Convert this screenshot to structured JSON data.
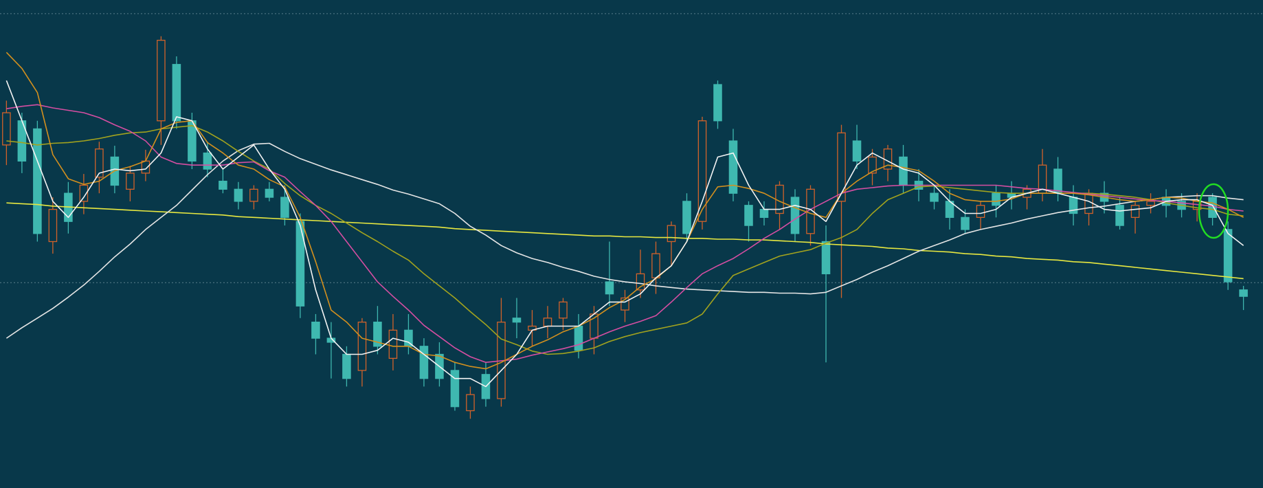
{
  "chart_data": {
    "type": "candlestick",
    "ylim": [
      0,
      606
    ],
    "grid_lines": [
      589,
      255
    ],
    "up_color": "#d2622a",
    "down_color": "#3fb8b0",
    "ohlc": [
      [
        426,
        481,
        401,
        466
      ],
      [
        456,
        466,
        391,
        406
      ],
      [
        446,
        456,
        306,
        316
      ],
      [
        306,
        361,
        291,
        346
      ],
      [
        366,
        380,
        316,
        331
      ],
      [
        356,
        390,
        340,
        376
      ],
      [
        386,
        430,
        366,
        421
      ],
      [
        411,
        425,
        366,
        376
      ],
      [
        371,
        400,
        356,
        391
      ],
      [
        391,
        420,
        381,
        406
      ],
      [
        456,
        561,
        426,
        556
      ],
      [
        526,
        536,
        446,
        456
      ],
      [
        456,
        466,
        396,
        406
      ],
      [
        416,
        430,
        386,
        396
      ],
      [
        381,
        396,
        366,
        371
      ],
      [
        371,
        380,
        346,
        356
      ],
      [
        356,
        376,
        346,
        371
      ],
      [
        371,
        380,
        356,
        361
      ],
      [
        361,
        376,
        326,
        336
      ],
      [
        331,
        341,
        211,
        226
      ],
      [
        206,
        216,
        166,
        186
      ],
      [
        186,
        206,
        136,
        181
      ],
      [
        166,
        176,
        126,
        136
      ],
      [
        146,
        211,
        126,
        206
      ],
      [
        206,
        226,
        166,
        176
      ],
      [
        161,
        216,
        146,
        196
      ],
      [
        196,
        216,
        166,
        176
      ],
      [
        176,
        186,
        126,
        136
      ],
      [
        166,
        181,
        126,
        136
      ],
      [
        146,
        156,
        96,
        101
      ],
      [
        96,
        126,
        86,
        116
      ],
      [
        141,
        156,
        101,
        111
      ],
      [
        111,
        236,
        101,
        206
      ],
      [
        211,
        236,
        186,
        206
      ],
      [
        196,
        221,
        176,
        201
      ],
      [
        201,
        226,
        186,
        211
      ],
      [
        211,
        236,
        196,
        231
      ],
      [
        201,
        216,
        161,
        171
      ],
      [
        186,
        226,
        166,
        216
      ],
      [
        256,
        306,
        226,
        241
      ],
      [
        221,
        246,
        206,
        236
      ],
      [
        246,
        296,
        236,
        266
      ],
      [
        261,
        306,
        241,
        291
      ],
      [
        306,
        331,
        276,
        326
      ],
      [
        356,
        366,
        306,
        316
      ],
      [
        331,
        461,
        321,
        456
      ],
      [
        501,
        506,
        446,
        456
      ],
      [
        431,
        446,
        356,
        366
      ],
      [
        351,
        356,
        306,
        326
      ],
      [
        346,
        356,
        326,
        336
      ],
      [
        341,
        381,
        321,
        376
      ],
      [
        361,
        371,
        306,
        316
      ],
      [
        316,
        376,
        301,
        371
      ],
      [
        306,
        326,
        156,
        266
      ],
      [
        356,
        451,
        236,
        441
      ],
      [
        431,
        451,
        396,
        406
      ],
      [
        391,
        421,
        376,
        411
      ],
      [
        396,
        426,
        381,
        421
      ],
      [
        411,
        426,
        366,
        376
      ],
      [
        381,
        396,
        356,
        371
      ],
      [
        366,
        376,
        346,
        356
      ],
      [
        356,
        371,
        321,
        336
      ],
      [
        336,
        346,
        316,
        321
      ],
      [
        336,
        356,
        321,
        351
      ],
      [
        366,
        376,
        336,
        351
      ],
      [
        366,
        381,
        346,
        361
      ],
      [
        361,
        376,
        346,
        371
      ],
      [
        366,
        421,
        356,
        401
      ],
      [
        396,
        411,
        356,
        366
      ],
      [
        361,
        376,
        326,
        341
      ],
      [
        341,
        371,
        326,
        366
      ],
      [
        366,
        381,
        341,
        356
      ],
      [
        351,
        361,
        321,
        326
      ],
      [
        336,
        356,
        316,
        351
      ],
      [
        351,
        366,
        341,
        356
      ],
      [
        361,
        371,
        336,
        351
      ],
      [
        356,
        366,
        336,
        346
      ],
      [
        346,
        366,
        331,
        356
      ],
      [
        361,
        366,
        326,
        336
      ],
      [
        321,
        331,
        246,
        256
      ],
      [
        246,
        251,
        221,
        238
      ]
    ],
    "moving_averages": [
      {
        "color": "#e8e840",
        "values": [
          354,
          353,
          352,
          350,
          349,
          348,
          347,
          346,
          345,
          344,
          343,
          342,
          341,
          340,
          339,
          337,
          336,
          335,
          334,
          333,
          332,
          331,
          330,
          329,
          328,
          327,
          326,
          325,
          324,
          322,
          321,
          320,
          319,
          318,
          317,
          316,
          315,
          314,
          313,
          313,
          312,
          312,
          311,
          311,
          310,
          310,
          309,
          309,
          308,
          308,
          307,
          306,
          305,
          303,
          302,
          301,
          300,
          298,
          297,
          295,
          294,
          293,
          291,
          290,
          288,
          287,
          285,
          284,
          283,
          281,
          280,
          278,
          276,
          274,
          272,
          270,
          268,
          266,
          264,
          262,
          260
        ]
      },
      {
        "color": "#e6e6e6",
        "values": [
          186,
          199,
          211,
          223,
          237,
          252,
          269,
          287,
          303,
          321,
          336,
          351,
          370,
          389,
          406,
          419,
          427,
          428,
          418,
          409,
          402,
          395,
          389,
          383,
          377,
          370,
          365,
          359,
          353,
          341,
          325,
          314,
          301,
          292,
          285,
          280,
          274,
          269,
          263,
          259,
          256,
          254,
          251,
          249,
          247,
          246,
          245,
          244,
          243,
          243,
          242,
          242,
          241,
          243,
          251,
          259,
          268,
          276,
          285,
          294,
          301,
          308,
          316,
          321,
          325,
          329,
          334,
          338,
          342,
          345,
          348,
          350,
          353,
          356,
          358,
          361,
          362,
          363,
          363,
          360,
          358
        ]
      },
      {
        "color": "#a3a31e",
        "values": [
          431,
          429,
          426,
          428,
          429,
          431,
          434,
          438,
          441,
          442,
          446,
          448,
          450,
          442,
          431,
          418,
          406,
          396,
          378,
          363,
          351,
          341,
          329,
          317,
          306,
          294,
          283,
          266,
          251,
          236,
          219,
          203,
          185,
          178,
          170,
          166,
          167,
          170,
          174,
          182,
          188,
          193,
          197,
          201,
          205,
          216,
          241,
          264,
          272,
          280,
          288,
          292,
          296,
          304,
          311,
          321,
          341,
          358,
          366,
          374,
          375,
          373,
          371,
          369,
          367,
          366,
          366,
          366,
          366,
          366,
          366,
          365,
          363,
          361,
          358,
          354,
          351,
          348,
          346,
          340,
          338
        ]
      },
      {
        "color": "#d64ea2",
        "values": [
          471,
          474,
          476,
          472,
          469,
          466,
          460,
          451,
          443,
          431,
          411,
          403,
          401,
          401,
          401,
          404,
          405,
          394,
          386,
          368,
          351,
          331,
          306,
          281,
          256,
          238,
          221,
          202,
          188,
          174,
          163,
          156,
          158,
          160,
          165,
          169,
          173,
          178,
          186,
          194,
          201,
          207,
          214,
          231,
          249,
          266,
          276,
          285,
          297,
          310,
          321,
          334,
          346,
          356,
          366,
          371,
          373,
          375,
          376,
          376,
          376,
          376,
          376,
          376,
          376,
          374,
          372,
          371,
          369,
          367,
          365,
          363,
          361,
          359,
          357,
          356,
          354,
          352,
          350,
          346,
          344
        ]
      },
      {
        "color": "#d4901e",
        "values": [
          541,
          521,
          491,
          414,
          384,
          377,
          381,
          394,
          399,
          406,
          446,
          454,
          456,
          429,
          416,
          401,
          396,
          383,
          374,
          336,
          281,
          221,
          206,
          186,
          181,
          176,
          176,
          166,
          164,
          156,
          151,
          148,
          156,
          166,
          176,
          184,
          194,
          201,
          211,
          224,
          234,
          250,
          260,
          276,
          306,
          346,
          374,
          376,
          372,
          366,
          356,
          348,
          341,
          336,
          366,
          381,
          393,
          401,
          398,
          394,
          381,
          366,
          358,
          356,
          356,
          359,
          366,
          366,
          366,
          366,
          364,
          361,
          358,
          356,
          358,
          361,
          360,
          356,
          354,
          346,
          336
        ]
      },
      {
        "color": "#f4f4f4",
        "values": [
          506,
          456,
          406,
          356,
          336,
          361,
          391,
          396,
          394,
          396,
          416,
          461,
          456,
          421,
          396,
          411,
          426,
          396,
          371,
          326,
          246,
          186,
          166,
          166,
          171,
          186,
          181,
          166,
          151,
          136,
          136,
          126,
          146,
          166,
          196,
          201,
          201,
          201,
          216,
          231,
          231,
          241,
          261,
          276,
          306,
          356,
          411,
          416,
          376,
          346,
          346,
          351,
          346,
          331,
          366,
          401,
          416,
          406,
          396,
          391,
          376,
          356,
          341,
          341,
          346,
          361,
          366,
          371,
          366,
          361,
          356,
          346,
          344,
          346,
          348,
          356,
          358,
          358,
          351,
          316,
          301
        ]
      }
    ]
  }
}
